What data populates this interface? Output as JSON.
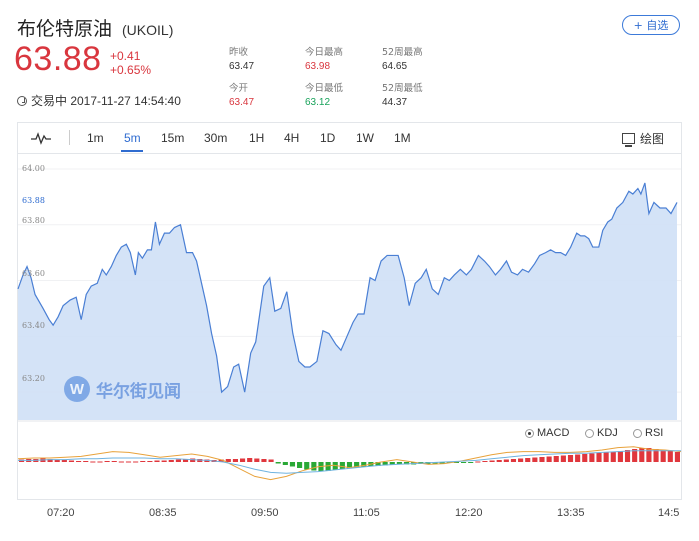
{
  "header": {
    "name": "布伦特原油",
    "code": "(UKOIL)",
    "follow_label": "+ 自选"
  },
  "quote": {
    "price": "63.88",
    "change": "+0.41",
    "change_pct": "+0.65%",
    "status": "交易中 2017-11-27 14:54:40"
  },
  "stats": [
    {
      "label": "昨收",
      "value": "63.47",
      "color": "normal"
    },
    {
      "label": "今日最高",
      "value": "63.98",
      "color": "red"
    },
    {
      "label": "52周最高",
      "value": "64.65",
      "color": "normal"
    },
    {
      "label": "今开",
      "value": "63.47",
      "color": "red"
    },
    {
      "label": "今日最低",
      "value": "63.12",
      "color": "green"
    },
    {
      "label": "52周最低",
      "value": "44.37",
      "color": "normal"
    }
  ],
  "toolbar": {
    "timeframes": [
      "1m",
      "5m",
      "15m",
      "30m",
      "1H",
      "4H",
      "1D",
      "1W",
      "1M"
    ],
    "active": "5m",
    "draw_label": "绘图"
  },
  "indicators": {
    "items": [
      "MACD",
      "KDJ",
      "RSI"
    ],
    "selected": "MACD"
  },
  "watermark": "华尔街见闻",
  "chart_data": {
    "type": "area",
    "x_ticks": [
      "07:20",
      "08:35",
      "09:50",
      "11:05",
      "12:20",
      "13:35",
      "14:5"
    ],
    "y_ticks": [
      "64.00",
      "63.80",
      "63.60",
      "63.40",
      "63.20"
    ],
    "current_label": "63.88",
    "ylim": [
      63.1,
      64.05
    ],
    "colors": {
      "line": "#4a7fd4",
      "fill": "#cfe0f6",
      "up": "#e0373d",
      "down": "#2aa836"
    },
    "x": [
      0,
      1,
      2,
      3,
      4,
      5,
      6,
      7,
      8,
      9,
      10,
      11,
      12,
      13,
      14,
      15,
      16,
      17,
      18,
      19,
      20,
      21,
      22,
      23,
      24,
      25,
      26,
      27,
      28,
      29,
      30,
      31,
      32,
      33,
      34,
      35,
      36,
      37,
      38,
      39,
      40,
      41,
      42,
      43,
      44,
      45,
      46,
      47,
      48,
      49,
      50,
      51,
      52,
      53,
      54,
      55,
      56,
      57,
      58,
      59,
      60,
      61,
      62,
      63,
      64,
      65,
      66,
      67,
      68,
      69,
      70,
      71,
      72,
      73,
      74,
      75,
      76,
      77,
      78,
      79,
      80,
      81,
      82,
      83,
      84,
      85,
      86,
      87,
      88,
      89,
      90,
      91,
      92,
      93,
      94,
      95,
      96,
      97,
      98,
      99,
      100,
      101,
      102,
      103,
      104,
      105,
      106,
      107,
      108,
      109,
      110,
      111,
      112,
      113,
      114,
      115,
      116,
      117,
      118,
      119,
      120,
      121,
      122,
      123,
      124,
      125,
      126,
      127,
      128,
      129,
      130,
      131,
      132,
      133,
      134,
      135,
      136,
      137,
      138,
      139,
      140,
      141,
      142,
      143,
      144,
      145,
      146,
      147,
      148,
      149,
      150,
      151,
      152,
      153,
      154,
      155,
      156,
      157,
      158,
      159,
      160,
      161,
      162,
      163,
      164,
      165,
      166,
      167,
      168,
      169,
      170,
      171,
      172,
      173,
      174,
      175,
      176,
      177,
      178,
      179,
      180,
      181,
      182,
      183,
      184,
      185,
      186,
      187,
      188,
      189,
      190,
      191,
      192,
      193,
      194,
      195,
      196,
      197,
      198,
      199,
      200,
      201,
      202,
      203,
      204,
      205,
      206,
      207,
      208,
      209,
      210,
      211,
      212,
      213,
      214,
      215,
      216,
      217,
      218,
      219,
      220,
      221,
      222,
      223,
      224,
      225,
      226,
      227,
      228,
      229,
      230,
      231,
      232,
      233,
      234,
      235,
      236,
      237,
      238,
      239,
      240,
      241,
      242,
      243,
      244,
      245,
      246,
      247,
      248,
      249,
      250,
      251,
      252,
      253,
      254,
      255,
      256,
      257,
      258,
      259,
      260,
      261,
      262,
      263,
      264,
      265,
      266,
      267,
      268,
      269,
      270,
      271,
      272,
      273,
      274,
      275,
      276,
      277,
      278,
      279,
      280,
      281,
      282,
      283,
      284,
      285,
      286,
      287,
      288,
      289,
      290,
      291,
      292,
      293,
      294,
      295,
      296,
      297,
      298,
      299,
      300,
      301,
      302,
      303,
      304,
      305,
      306,
      307,
      308,
      309,
      310,
      311,
      312,
      313,
      314,
      315,
      316,
      317,
      318,
      319,
      320,
      321,
      322,
      323,
      324,
      325,
      326,
      327,
      328,
      329,
      330,
      331,
      332,
      333,
      334,
      335,
      336,
      337,
      338,
      339,
      340,
      341,
      342,
      343,
      344,
      345,
      346,
      347,
      348,
      349,
      350,
      351,
      352,
      353,
      354,
      355,
      356,
      357,
      358,
      359,
      360,
      361,
      362,
      363,
      364,
      365,
      366,
      367,
      368,
      369,
      370,
      371,
      372,
      373,
      374,
      375,
      376,
      377,
      378,
      379,
      380,
      381,
      382,
      383,
      384,
      385,
      386,
      387,
      388,
      389,
      390,
      391,
      392,
      393,
      394,
      395,
      396,
      397,
      398,
      399,
      400,
      401,
      402,
      403,
      404,
      405,
      406,
      407,
      408,
      409,
      410,
      411,
      412,
      413,
      414,
      415,
      416,
      417,
      418,
      419,
      420,
      421,
      422,
      423,
      424,
      425,
      426,
      427,
      428,
      429,
      430,
      431,
      432,
      433,
      434,
      435,
      436,
      437,
      438,
      439,
      440,
      441,
      442,
      443,
      444,
      445,
      446,
      447,
      448,
      449,
      450,
      451,
      452,
      453,
      454,
      455,
      456,
      457,
      458,
      459,
      460,
      461,
      462,
      463,
      464,
      465,
      466,
      467,
      468,
      469,
      470,
      471,
      472,
      473,
      474,
      475,
      476,
      477,
      478,
      479,
      480,
      481,
      482,
      483,
      484,
      485,
      486,
      487,
      488,
      489,
      490,
      491,
      492,
      493,
      494,
      495,
      496,
      497,
      498,
      499,
      500,
      501,
      502,
      503,
      504,
      505,
      506,
      507,
      508,
      509,
      510,
      511,
      512,
      513,
      514,
      515,
      516,
      517,
      518,
      519,
      520,
      521,
      522,
      523,
      524,
      525,
      526,
      527,
      528,
      529,
      530,
      531,
      532,
      533,
      534,
      535,
      536,
      537,
      538,
      539,
      540,
      541,
      542,
      543,
      544,
      545,
      546,
      547,
      548,
      549,
      550,
      551,
      552,
      553,
      554,
      555,
      556,
      557,
      558,
      559,
      560,
      561,
      562,
      563,
      564,
      565,
      566,
      567,
      568,
      569,
      570,
      571,
      572,
      573,
      574,
      575,
      576,
      577,
      578,
      579,
      580,
      581,
      582,
      583,
      584,
      585,
      586,
      587,
      588,
      589,
      590,
      591,
      592,
      593,
      594,
      595,
      596,
      597,
      598,
      599,
      600,
      601,
      602,
      603,
      604,
      605,
      606,
      607,
      608,
      609,
      610,
      611,
      612,
      613,
      614,
      615,
      616,
      617,
      618,
      619,
      620,
      621,
      622,
      623,
      624,
      625,
      626,
      627,
      628,
      629,
      630,
      631,
      632,
      633,
      634,
      635,
      636,
      637,
      638,
      639,
      640,
      641,
      642,
      643,
      644,
      645,
      646,
      647,
      648,
      649,
      650,
      651,
      652,
      653,
      654,
      655,
      656,
      657,
      658,
      659
    ],
    "price_points": [
      [
        0,
        63.57
      ],
      [
        5,
        63.62
      ],
      [
        9,
        63.65
      ],
      [
        13,
        63.61
      ],
      [
        17,
        63.55
      ],
      [
        25,
        63.5
      ],
      [
        31,
        63.46
      ],
      [
        35,
        63.44
      ],
      [
        40,
        63.47
      ],
      [
        45,
        63.51
      ],
      [
        52,
        63.53
      ],
      [
        58,
        63.54
      ],
      [
        63,
        63.46
      ],
      [
        68,
        63.55
      ],
      [
        73,
        63.58
      ],
      [
        79,
        63.59
      ],
      [
        84,
        63.64
      ],
      [
        88,
        63.62
      ],
      [
        93,
        63.65
      ],
      [
        98,
        63.69
      ],
      [
        103,
        63.72
      ],
      [
        108,
        63.73
      ],
      [
        112,
        63.7
      ],
      [
        117,
        63.62
      ],
      [
        120,
        63.7
      ],
      [
        124,
        63.68
      ],
      [
        129,
        63.71
      ],
      [
        133,
        63.71
      ],
      [
        137,
        63.81
      ],
      [
        141,
        63.73
      ],
      [
        146,
        63.77
      ],
      [
        151,
        63.77
      ],
      [
        156,
        63.79
      ],
      [
        162,
        63.8
      ],
      [
        168,
        63.7
      ],
      [
        174,
        63.7
      ],
      [
        178,
        63.67
      ],
      [
        183,
        63.59
      ],
      [
        188,
        63.51
      ],
      [
        193,
        63.41
      ],
      [
        198,
        63.33
      ],
      [
        203,
        63.2
      ],
      [
        209,
        63.22
      ],
      [
        215,
        63.29
      ],
      [
        220,
        63.3
      ],
      [
        226,
        63.2
      ],
      [
        232,
        63.34
      ],
      [
        237,
        63.38
      ],
      [
        241,
        63.48
      ],
      [
        245,
        63.58
      ],
      [
        251,
        63.61
      ],
      [
        256,
        63.49
      ],
      [
        262,
        63.5
      ],
      [
        268,
        63.56
      ],
      [
        274,
        63.41
      ],
      [
        280,
        63.31
      ],
      [
        286,
        63.29
      ],
      [
        291,
        63.29
      ],
      [
        298,
        63.31
      ],
      [
        304,
        63.42
      ],
      [
        310,
        63.41
      ],
      [
        317,
        63.37
      ],
      [
        322,
        63.35
      ],
      [
        328,
        63.4
      ],
      [
        334,
        63.45
      ],
      [
        339,
        63.48
      ],
      [
        345,
        63.48
      ],
      [
        351,
        63.61
      ],
      [
        356,
        63.6
      ],
      [
        362,
        63.67
      ],
      [
        368,
        63.69
      ],
      [
        374,
        63.69
      ],
      [
        379,
        63.69
      ],
      [
        385,
        63.61
      ],
      [
        390,
        63.51
      ],
      [
        396,
        63.59
      ],
      [
        402,
        63.61
      ],
      [
        407,
        63.64
      ],
      [
        413,
        63.57
      ],
      [
        419,
        63.55
      ],
      [
        425,
        63.61
      ],
      [
        430,
        63.6
      ],
      [
        435,
        63.62
      ],
      [
        441,
        63.64
      ],
      [
        447,
        63.62
      ],
      [
        452,
        63.64
      ],
      [
        459,
        63.69
      ],
      [
        465,
        63.67
      ],
      [
        470,
        63.65
      ],
      [
        476,
        63.62
      ],
      [
        481,
        63.64
      ],
      [
        487,
        63.67
      ],
      [
        492,
        63.63
      ],
      [
        498,
        63.62
      ],
      [
        503,
        63.64
      ],
      [
        509,
        63.63
      ],
      [
        515,
        63.66
      ],
      [
        520,
        63.69
      ],
      [
        526,
        63.7
      ],
      [
        531,
        63.71
      ],
      [
        536,
        63.7
      ],
      [
        541,
        63.7
      ],
      [
        546,
        63.69
      ],
      [
        551,
        63.72
      ],
      [
        557,
        63.77
      ],
      [
        561,
        63.76
      ],
      [
        565,
        63.76
      ],
      [
        569,
        63.75
      ],
      [
        573,
        63.72
      ],
      [
        579,
        63.72
      ],
      [
        583,
        63.78
      ],
      [
        588,
        63.81
      ],
      [
        592,
        63.82
      ],
      [
        597,
        63.86
      ],
      [
        603,
        63.88
      ],
      [
        609,
        63.92
      ],
      [
        613,
        63.91
      ],
      [
        618,
        63.93
      ],
      [
        621,
        63.91
      ],
      [
        625,
        63.95
      ],
      [
        629,
        63.84
      ],
      [
        634,
        63.88
      ],
      [
        640,
        63.86
      ],
      [
        646,
        63.86
      ],
      [
        651,
        63.84
      ],
      [
        657,
        63.88
      ]
    ],
    "macd_hist": [
      0.5,
      0.6,
      0.6,
      0.7,
      0.6,
      0.5,
      0.4,
      0.3,
      0.2,
      0.2,
      0.1,
      0.1,
      0.2,
      0.2,
      0.1,
      0.1,
      0.1,
      0.2,
      0.2,
      0.3,
      0.3,
      0.4,
      0.5,
      0.6,
      0.7,
      0.6,
      0.5,
      0.4,
      0.5,
      0.6,
      0.6,
      0.7,
      0.8,
      0.7,
      0.6,
      0.5,
      -0.3,
      -0.6,
      -0.9,
      -1.2,
      -1.5,
      -1.7,
      -1.8,
      -1.8,
      -1.6,
      -1.4,
      -1.3,
      -1.1,
      -1.0,
      -0.9,
      -0.8,
      -0.7,
      -0.6,
      -0.5,
      -0.5,
      -0.5,
      -0.4,
      -0.4,
      -0.3,
      -0.3,
      -0.2,
      -0.2,
      -0.2,
      -0.1,
      0.1,
      0.2,
      0.3,
      0.4,
      0.5,
      0.6,
      0.7,
      0.8,
      0.9,
      1.0,
      1.1,
      1.2,
      1.3,
      1.4,
      1.5,
      1.6,
      1.7,
      1.8,
      1.9,
      2.0,
      2.2,
      2.4,
      2.6,
      2.8,
      2.8,
      2.6,
      2.4,
      2.2,
      2.0
    ],
    "dif_line": [
      0.4,
      0.5,
      0.5,
      0.6,
      0.7,
      1.0,
      1.3,
      1.2,
      0.9,
      0.6,
      0.8,
      1.0,
      0.7,
      0.2,
      -0.8,
      -1.8,
      -2.2,
      -1.8,
      -1.1,
      -0.6,
      -0.4,
      -0.7,
      -0.4,
      0.0,
      0.3,
      0.0,
      -0.3,
      -0.2,
      0.1,
      0.5,
      0.9,
      1.2,
      1.3,
      1.3,
      1.2,
      1.2,
      1.3,
      1.5,
      1.8,
      1.9,
      1.6,
      1.5,
      1.3
    ],
    "dea_line": [
      0.2,
      0.2,
      0.3,
      0.3,
      0.4,
      0.4,
      0.5,
      0.5,
      0.5,
      0.4,
      0.4,
      0.3,
      0.2,
      0.0,
      -0.4,
      -0.9,
      -1.3,
      -1.4,
      -1.3,
      -1.2,
      -1.0,
      -0.8,
      -0.6,
      -0.4,
      -0.3,
      -0.2,
      -0.1,
      0.0,
      0.1,
      0.2,
      0.4,
      0.6,
      0.8,
      0.9,
      1.0,
      1.1,
      1.1,
      1.2,
      1.3,
      1.4,
      1.4,
      1.4,
      1.4
    ]
  }
}
